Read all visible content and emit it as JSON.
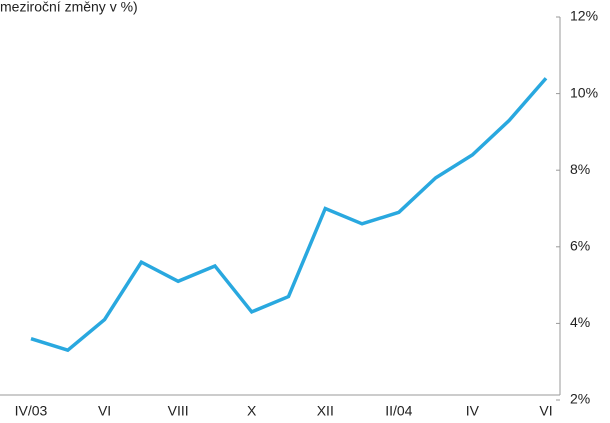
{
  "chart_data": {
    "type": "line",
    "title": "meziroční změny v %)",
    "categories": [
      "IV/03",
      null,
      "VI",
      null,
      "VIII",
      null,
      "X",
      null,
      "XII",
      null,
      "II/04",
      null,
      "IV",
      null,
      "VI"
    ],
    "series": [
      {
        "color": "#29a8df",
        "values": [
          3.6,
          3.3,
          4.1,
          5.6,
          5.1,
          5.5,
          4.3,
          4.7,
          7.0,
          6.6,
          6.9,
          7.8,
          8.4,
          9.3,
          10.4
        ]
      }
    ],
    "ylim": [
      2,
      12
    ],
    "yticks": [
      {
        "value": 2,
        "label": "2%"
      },
      {
        "value": 4,
        "label": "4%"
      },
      {
        "value": 6,
        "label": "6%"
      },
      {
        "value": 8,
        "label": "8%"
      },
      {
        "value": 10,
        "label": "10%"
      },
      {
        "value": 12,
        "label": "12%"
      }
    ],
    "grid": false
  }
}
